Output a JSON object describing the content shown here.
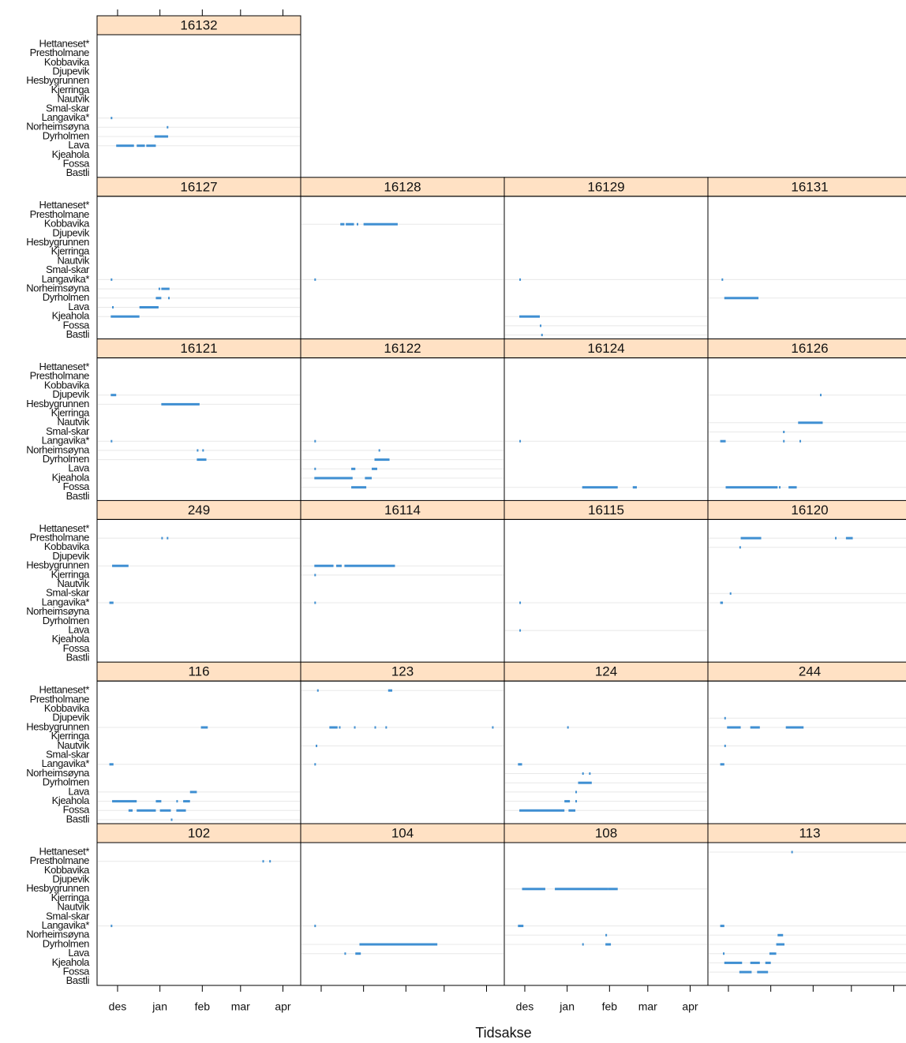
{
  "chart_data": {
    "type": "trellis-timeline",
    "xlabel": "Tidsakse",
    "stations": [
      "Hettaneset*",
      "Prestholmane",
      "Kobbavika",
      "Djupevik",
      "Hesbygrunnen",
      "Kjerringa",
      "Nautvik",
      "Smal-skar",
      "Langavika*",
      "Norheimsøyna",
      "Dyrholmen",
      "Lava",
      "Kjeahola",
      "Fossa",
      "Bastli"
    ],
    "xlim": [
      15,
      164
    ],
    "xticks": [
      {
        "value": 30,
        "label": "des"
      },
      {
        "value": 61,
        "label": "jan"
      },
      {
        "value": 92,
        "label": "feb"
      },
      {
        "value": 120,
        "label": "mar"
      },
      {
        "value": 151,
        "label": "apr"
      }
    ],
    "color": "#3f8fd2",
    "strip_color": "#ffe1c4",
    "rows": [
      [
        {
          "title": "16132",
          "detections": [
            [],
            [],
            [],
            [],
            [],
            [],
            [],
            [],
            [
              [
                25,
                26
              ]
            ],
            [
              [
                66,
                67
              ]
            ],
            [
              [
                57,
                67
              ]
            ],
            [
              [
                29,
                42
              ],
              [
                44,
                50
              ],
              [
                51,
                58
              ]
            ],
            [],
            [],
            []
          ]
        }
      ],
      [
        {
          "title": "16127",
          "detections": [
            [],
            [],
            [],
            [],
            [],
            [],
            [],
            [],
            [
              [
                25,
                26
              ]
            ],
            [
              [
                60,
                61
              ],
              [
                62,
                68
              ]
            ],
            [
              [
                58,
                62
              ],
              [
                67,
                68
              ]
            ],
            [
              [
                26,
                27
              ],
              [
                46,
                60
              ]
            ],
            [
              [
                25,
                46
              ]
            ],
            [],
            []
          ]
        },
        {
          "title": "16128",
          "detections": [
            [],
            [],
            [
              [
                44,
                47
              ],
              [
                48,
                54
              ],
              [
                56,
                57
              ],
              [
                61,
                86
              ]
            ],
            [],
            [],
            [],
            [],
            [],
            [
              [
                25,
                26
              ]
            ],
            [],
            [],
            [],
            [],
            [],
            []
          ]
        },
        {
          "title": "16129",
          "detections": [
            [],
            [],
            [],
            [],
            [],
            [],
            [],
            [],
            [
              [
                26,
                27
              ]
            ],
            [],
            [],
            [],
            [
              [
                26,
                41
              ]
            ],
            [
              [
                41,
                42
              ]
            ],
            [
              [
                42,
                43
              ]
            ]
          ]
        },
        {
          "title": "16131",
          "detections": [
            [],
            [],
            [],
            [],
            [],
            [],
            [],
            [],
            [
              [
                25,
                26
              ]
            ],
            [],
            [
              [
                27,
                52
              ]
            ],
            [],
            [],
            [],
            []
          ]
        }
      ],
      [
        {
          "title": "16121",
          "detections": [
            [],
            [],
            [],
            [
              [
                25,
                29
              ]
            ],
            [
              [
                62,
                90
              ]
            ],
            [],
            [],
            [],
            [
              [
                25,
                26
              ]
            ],
            [
              [
                88,
                89
              ],
              [
                92,
                93
              ]
            ],
            [
              [
                88,
                95
              ]
            ],
            [],
            [],
            [],
            []
          ]
        },
        {
          "title": "16122",
          "detections": [
            [],
            [],
            [],
            [],
            [],
            [],
            [],
            [],
            [
              [
                25,
                26
              ]
            ],
            [
              [
                72,
                73
              ]
            ],
            [
              [
                69,
                80
              ]
            ],
            [
              [
                25,
                26
              ],
              [
                52,
                55
              ],
              [
                67,
                71
              ]
            ],
            [
              [
                25,
                53
              ],
              [
                62,
                67
              ]
            ],
            [
              [
                52,
                63
              ]
            ],
            []
          ]
        },
        {
          "title": "16124",
          "detections": [
            [],
            [],
            [],
            [],
            [],
            [],
            [],
            [],
            [
              [
                26,
                27
              ]
            ],
            [],
            [],
            [],
            [],
            [
              [
                72,
                98
              ],
              [
                109,
                112
              ]
            ],
            []
          ]
        },
        {
          "title": "16126",
          "detections": [
            [],
            [],
            [],
            [
              [
                97,
                98
              ]
            ],
            [],
            [],
            [
              [
                81,
                99
              ]
            ],
            [
              [
                70,
                71
              ]
            ],
            [
              [
                24,
                28
              ],
              [
                70,
                71
              ],
              [
                82,
                83
              ]
            ],
            [],
            [],
            [],
            [],
            [
              [
                28,
                66
              ],
              [
                67,
                68
              ],
              [
                74,
                80
              ]
            ],
            []
          ]
        }
      ],
      [
        {
          "title": "249",
          "detections": [
            [],
            [
              [
                62,
                63
              ],
              [
                66,
                67
              ]
            ],
            [],
            [],
            [
              [
                26,
                38
              ]
            ],
            [],
            [],
            [],
            [
              [
                24,
                27
              ]
            ],
            [],
            [],
            [],
            [],
            [],
            []
          ]
        },
        {
          "title": "16114",
          "detections": [
            [],
            [],
            [],
            [],
            [
              [
                25,
                39
              ],
              [
                41,
                45
              ],
              [
                47,
                84
              ]
            ],
            [
              [
                25,
                26
              ]
            ],
            [],
            [],
            [
              [
                25,
                26
              ]
            ],
            [],
            [],
            [],
            [],
            [],
            []
          ]
        },
        {
          "title": "16115",
          "detections": [
            [],
            [],
            [],
            [],
            [],
            [],
            [],
            [],
            [
              [
                26,
                27
              ]
            ],
            [],
            [],
            [
              [
                26,
                27
              ]
            ],
            [],
            [],
            []
          ]
        },
        {
          "title": "16120",
          "detections": [
            [],
            [
              [
                39,
                54
              ],
              [
                108,
                109
              ],
              [
                116,
                121
              ]
            ],
            [
              [
                38,
                39
              ]
            ],
            [],
            [],
            [],
            [],
            [
              [
                31,
                32
              ]
            ],
            [
              [
                24,
                26
              ]
            ],
            [],
            [],
            [],
            [],
            [],
            []
          ]
        }
      ],
      [
        {
          "title": "116",
          "detections": [
            [],
            [],
            [],
            [],
            [
              [
                91,
                96
              ]
            ],
            [],
            [],
            [],
            [
              [
                24,
                27
              ]
            ],
            [],
            [],
            [
              [
                83,
                88
              ]
            ],
            [
              [
                26,
                44
              ],
              [
                58,
                62
              ],
              [
                73,
                74
              ],
              [
                78,
                83
              ]
            ],
            [
              [
                38,
                41
              ],
              [
                44,
                58
              ],
              [
                61,
                69
              ],
              [
                73,
                80
              ]
            ],
            [
              [
                69,
                70
              ]
            ]
          ]
        },
        {
          "title": "123",
          "detections": [
            [
              [
                27,
                28
              ],
              [
                79,
                82
              ]
            ],
            [],
            [],
            [],
            [
              [
                36,
                42
              ],
              [
                43,
                44
              ],
              [
                54,
                55
              ],
              [
                69,
                70
              ],
              [
                77,
                78
              ],
              [
                155,
                156
              ]
            ],
            [],
            [
              [
                26,
                27
              ]
            ],
            [],
            [
              [
                25,
                26
              ]
            ],
            [],
            [],
            [],
            [],
            [],
            []
          ]
        },
        {
          "title": "124",
          "detections": [
            [],
            [],
            [],
            [],
            [
              [
                61,
                62
              ]
            ],
            [],
            [],
            [],
            [
              [
                25,
                28
              ]
            ],
            [
              [
                72,
                73
              ],
              [
                77,
                78
              ]
            ],
            [
              [
                69,
                79
              ]
            ],
            [
              [
                67,
                68
              ]
            ],
            [
              [
                59,
                63
              ],
              [
                67,
                68
              ]
            ],
            [
              [
                26,
                59
              ],
              [
                62,
                67
              ]
            ],
            []
          ]
        },
        {
          "title": "244",
          "detections": [
            [],
            [],
            [],
            [
              [
                27,
                28
              ]
            ],
            [
              [
                29,
                39
              ],
              [
                46,
                53
              ],
              [
                72,
                85
              ]
            ],
            [],
            [
              [
                27,
                28
              ]
            ],
            [],
            [
              [
                24,
                27
              ]
            ],
            [],
            [],
            [],
            [],
            [],
            []
          ]
        }
      ],
      [
        {
          "title": "102",
          "detections": [
            [],
            [
              [
                136,
                137
              ],
              [
                141,
                142
              ]
            ],
            [],
            [],
            [],
            [],
            [],
            [],
            [
              [
                25,
                26
              ]
            ],
            [],
            [],
            [],
            [],
            [],
            []
          ]
        },
        {
          "title": "104",
          "detections": [
            [],
            [],
            [],
            [],
            [],
            [],
            [],
            [],
            [
              [
                25,
                26
              ]
            ],
            [],
            [
              [
                58,
                115
              ]
            ],
            [
              [
                47,
                48
              ],
              [
                55,
                59
              ]
            ],
            [],
            [],
            []
          ]
        },
        {
          "title": "108",
          "detections": [
            [],
            [],
            [],
            [],
            [
              [
                28,
                45
              ],
              [
                52,
                91
              ],
              [
                91,
                98
              ]
            ],
            [],
            [],
            [],
            [
              [
                25,
                29
              ]
            ],
            [
              [
                89,
                90
              ]
            ],
            [
              [
                72,
                73
              ],
              [
                89,
                93
              ]
            ],
            [],
            [],
            [],
            []
          ]
        },
        {
          "title": "113",
          "detections": [
            [
              [
                76,
                77
              ]
            ],
            [],
            [],
            [],
            [],
            [],
            [],
            [],
            [
              [
                24,
                27
              ]
            ],
            [
              [
                66,
                70
              ]
            ],
            [
              [
                65,
                71
              ]
            ],
            [
              [
                26,
                27
              ],
              [
                60,
                65
              ]
            ],
            [
              [
                27,
                40
              ],
              [
                46,
                53
              ],
              [
                57,
                61
              ]
            ],
            [
              [
                38,
                47
              ],
              [
                51,
                59
              ]
            ],
            []
          ]
        }
      ]
    ]
  }
}
